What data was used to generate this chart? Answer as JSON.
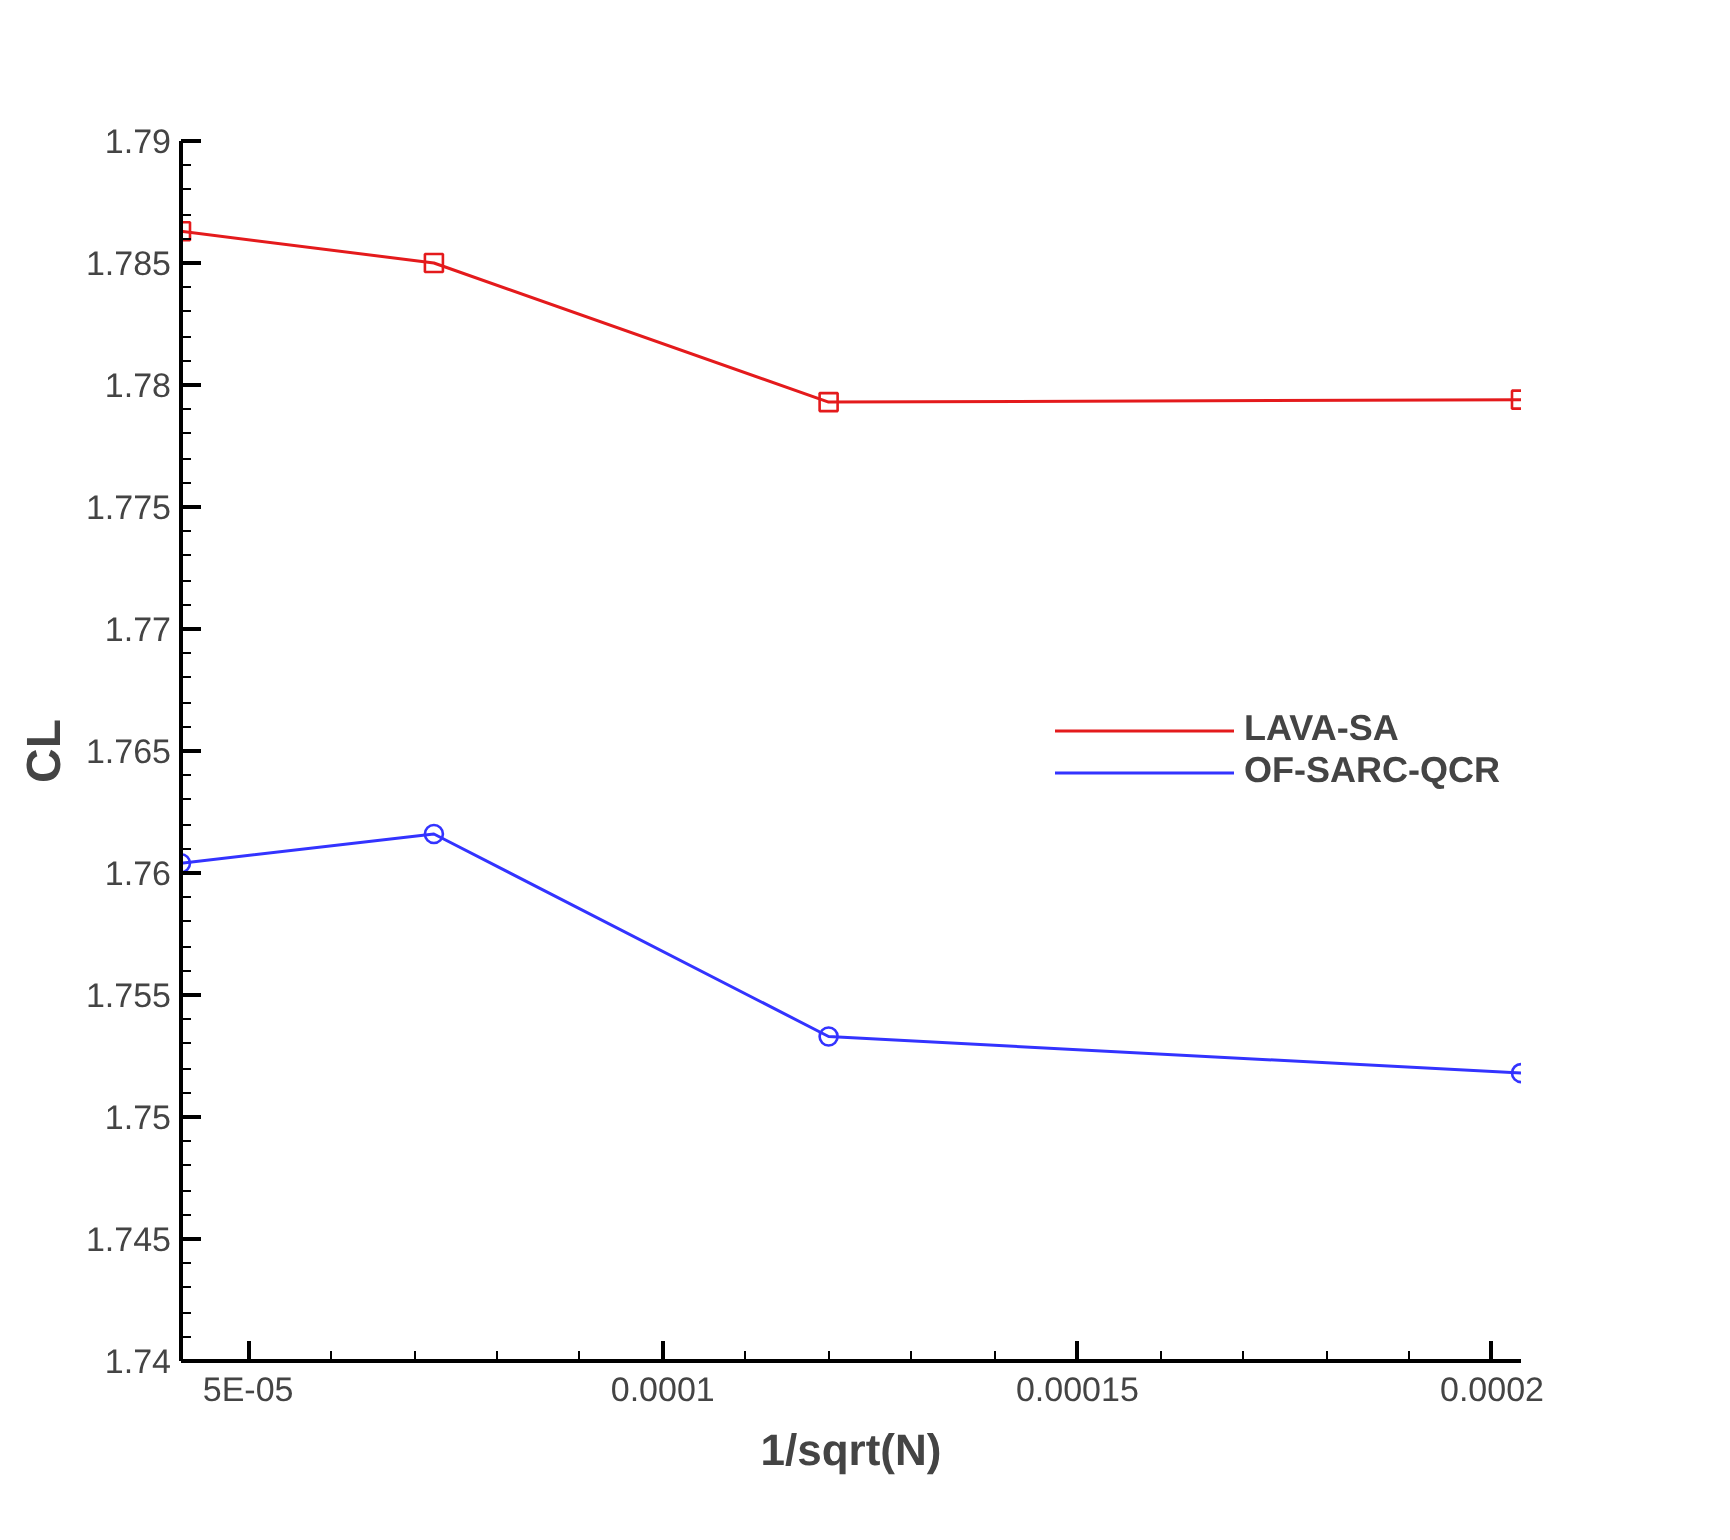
{
  "chart_data": {
    "type": "line",
    "xlabel": "1/sqrt(N)",
    "ylabel": "CL",
    "x": [
      4.19e-05,
      7.24e-05,
      0.00012,
      0.0002035
    ],
    "series": [
      {
        "name": "LAVA-SA",
        "color": "#e41a1c",
        "values": [
          1.7863,
          1.785,
          1.7793,
          1.7794
        ],
        "marker": "square"
      },
      {
        "name": "OF-SARC-QCR",
        "color": "#3333ff",
        "values": [
          1.7604,
          1.7616,
          1.7533,
          1.7518
        ],
        "marker": "circle"
      }
    ],
    "xlim": [
      4.19e-05,
      0.0002035
    ],
    "ylim": [
      1.74,
      1.79
    ],
    "xticks": [
      {
        "value": 5e-05,
        "label": "5E-05"
      },
      0.0001,
      0.00015,
      0.0002
    ],
    "yticks": [
      1.74,
      1.745,
      1.75,
      1.755,
      1.76,
      1.765,
      1.77,
      1.775,
      1.78,
      1.785,
      1.79
    ],
    "grid": false,
    "legend": "right",
    "line_style": "solid"
  }
}
